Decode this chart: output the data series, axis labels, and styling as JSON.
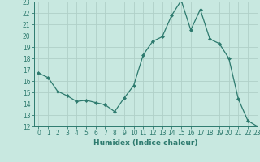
{
  "x": [
    0,
    1,
    2,
    3,
    4,
    5,
    6,
    7,
    8,
    9,
    10,
    11,
    12,
    13,
    14,
    15,
    16,
    17,
    18,
    19,
    20,
    21,
    22,
    23
  ],
  "y": [
    16.7,
    16.3,
    15.1,
    14.7,
    14.2,
    14.3,
    14.1,
    13.9,
    13.3,
    14.5,
    15.6,
    18.3,
    19.5,
    19.9,
    21.8,
    23.1,
    20.5,
    22.3,
    19.7,
    19.3,
    18.0,
    14.4,
    12.5,
    12.0
  ],
  "line_color": "#2d7a6e",
  "marker": "D",
  "marker_size": 2.0,
  "bg_color": "#c8e8e0",
  "grid_color": "#b0d0c8",
  "xlabel": "Humidex (Indice chaleur)",
  "ylim": [
    12,
    23
  ],
  "xlim": [
    -0.5,
    23
  ],
  "yticks": [
    12,
    13,
    14,
    15,
    16,
    17,
    18,
    19,
    20,
    21,
    22,
    23
  ],
  "xticks": [
    0,
    1,
    2,
    3,
    4,
    5,
    6,
    7,
    8,
    9,
    10,
    11,
    12,
    13,
    14,
    15,
    16,
    17,
    18,
    19,
    20,
    21,
    22,
    23
  ],
  "tick_fontsize": 5.5,
  "xlabel_fontsize": 6.5,
  "tick_color": "#2d7a6e",
  "axis_color": "#2d7a6e",
  "linewidth": 0.9,
  "markeredgewidth": 0.5
}
